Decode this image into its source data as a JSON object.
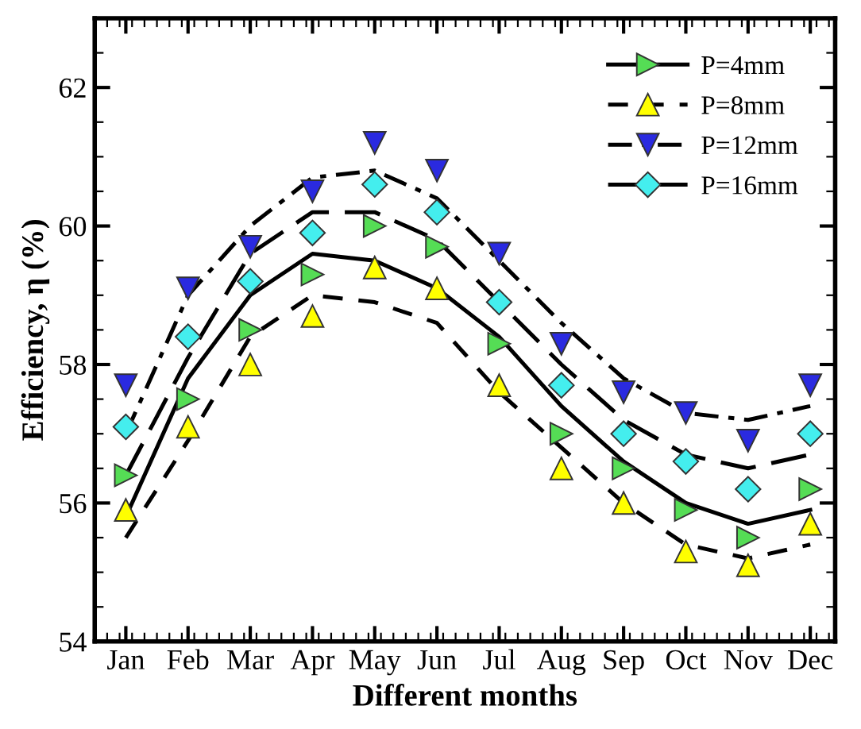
{
  "chart_data": {
    "type": "scatter",
    "xlabel": "Different months",
    "ylabel": "Efficiency, η (%)",
    "categories": [
      "Jan",
      "Feb",
      "Mar",
      "Apr",
      "May",
      "Jun",
      "Jul",
      "Aug",
      "Sep",
      "Oct",
      "Nov",
      "Dec"
    ],
    "ylim": [
      54,
      63
    ],
    "yticks": [
      54,
      56,
      58,
      60,
      62
    ],
    "grid": false,
    "legend": "top right",
    "series": [
      {
        "name": "P=4mm",
        "marker": "triangle-right",
        "color": "#55dd55",
        "values": [
          56.4,
          57.5,
          58.5,
          59.3,
          60.0,
          59.7,
          58.3,
          57.0,
          56.5,
          55.9,
          55.5,
          56.2
        ]
      },
      {
        "name": "P=8mm",
        "marker": "triangle",
        "color": "#ffff00",
        "values": [
          55.9,
          57.1,
          58.0,
          58.7,
          59.4,
          59.1,
          57.7,
          56.5,
          56.0,
          55.3,
          55.1,
          55.7
        ]
      },
      {
        "name": "P=12mm",
        "marker": "triangle-down",
        "color": "#2a2ae0",
        "values": [
          57.7,
          59.1,
          59.7,
          60.5,
          61.2,
          60.8,
          59.6,
          58.3,
          57.6,
          57.3,
          56.9,
          57.7
        ]
      },
      {
        "name": "P=16mm",
        "marker": "diamond",
        "color": "#44eeee",
        "values": [
          57.1,
          58.4,
          59.2,
          59.9,
          60.6,
          60.2,
          58.9,
          57.7,
          57.0,
          56.6,
          56.2,
          57.0
        ]
      },
      {
        "type": "line",
        "color": "#000000",
        "line_style": "solid",
        "values": [
          55.8,
          57.8,
          59.0,
          59.6,
          59.5,
          59.1,
          58.4,
          57.4,
          56.6,
          56.0,
          55.7,
          55.9
        ]
      },
      {
        "type": "line",
        "color": "#000000",
        "line_style": "dashed",
        "values": [
          55.5,
          56.9,
          58.4,
          59.0,
          58.9,
          58.6,
          57.6,
          56.8,
          56.0,
          55.4,
          55.2,
          55.4
        ]
      },
      {
        "type": "line",
        "color": "#000000",
        "line_style": "dashdot",
        "values": [
          57.0,
          59.0,
          60.0,
          60.7,
          60.8,
          60.4,
          59.5,
          58.6,
          57.8,
          57.3,
          57.2,
          57.4
        ]
      },
      {
        "type": "line",
        "color": "#000000",
        "line_style": "longdash",
        "values": [
          56.4,
          58.1,
          59.6,
          60.2,
          60.2,
          59.8,
          58.9,
          58.0,
          57.2,
          56.7,
          56.5,
          56.7
        ]
      }
    ]
  }
}
